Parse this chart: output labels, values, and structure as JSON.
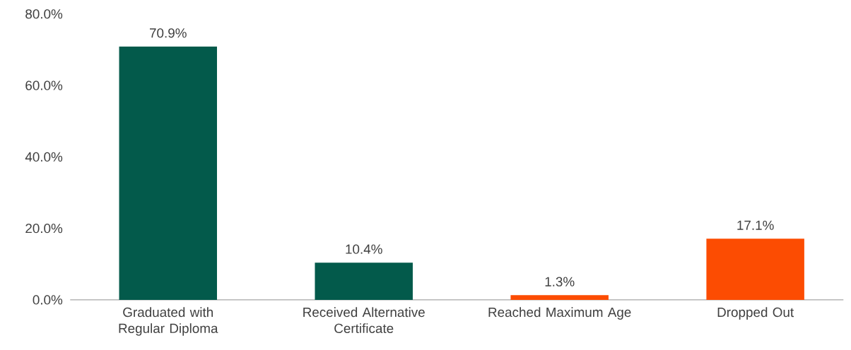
{
  "chart_data": {
    "type": "bar",
    "categories": [
      "Graduated with Regular Diploma",
      "Received Alternative Certificate",
      "Reached Maximum Age",
      "Dropped Out"
    ],
    "values": [
      70.9,
      10.4,
      1.3,
      17.1
    ],
    "colors": [
      "#035a4b",
      "#035a4b",
      "#fc4c02",
      "#fc4c02"
    ],
    "value_labels": [
      "70.9%",
      "10.4%",
      "1.3%",
      "17.1%"
    ],
    "ylim": [
      0,
      80
    ],
    "yticks": [
      {
        "value": 0,
        "label": "0.0%"
      },
      {
        "value": 20,
        "label": "20.0%"
      },
      {
        "value": 40,
        "label": "40.0%"
      },
      {
        "value": 60,
        "label": "60.0%"
      },
      {
        "value": 80,
        "label": "80.0%"
      }
    ]
  }
}
